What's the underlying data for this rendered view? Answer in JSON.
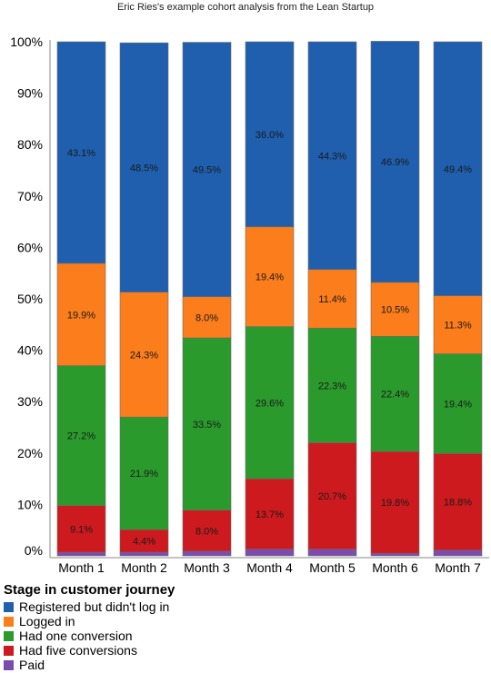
{
  "chart_data": {
    "type": "bar",
    "stacked": true,
    "title": "Eric Ries's example cohort analysis from the Lean Startup",
    "xlabel": "",
    "ylabel": "",
    "ylim": [
      0,
      100
    ],
    "y_ticks": [
      "0%",
      "10%",
      "20%",
      "30%",
      "40%",
      "50%",
      "60%",
      "70%",
      "80%",
      "90%",
      "100%"
    ],
    "grid": false,
    "legend_position": "bottom-left",
    "legend_title": "Stage in customer journey",
    "categories": [
      "Month 1",
      "Month 2",
      "Month 3",
      "Month 4",
      "Month 5",
      "Month 6",
      "Month 7"
    ],
    "series": [
      {
        "name": "Paid",
        "color": "#7b4cae",
        "values": [
          0.7,
          0.7,
          0.9,
          1.3,
          1.3,
          0.5,
          1.1
        ],
        "labels": [
          "",
          "",
          "",
          "",
          "",
          "",
          ""
        ]
      },
      {
        "name": "Had five conversions",
        "color": "#cc1a1f",
        "values": [
          9.1,
          4.4,
          8.0,
          13.7,
          20.7,
          19.8,
          18.8
        ],
        "labels": [
          "9.1%",
          "4.4%",
          "8.0%",
          "13.7%",
          "20.7%",
          "19.8%",
          "18.8%"
        ]
      },
      {
        "name": "Had one conversion",
        "color": "#2b9a2c",
        "values": [
          27.2,
          21.9,
          33.5,
          29.6,
          22.3,
          22.4,
          19.4
        ],
        "labels": [
          "27.2%",
          "21.9%",
          "33.5%",
          "29.6%",
          "22.3%",
          "22.4%",
          "19.4%"
        ]
      },
      {
        "name": "Logged in",
        "color": "#fb7d1b",
        "values": [
          19.9,
          24.3,
          8.0,
          19.4,
          11.4,
          10.5,
          11.3
        ],
        "labels": [
          "19.9%",
          "24.3%",
          "8.0%",
          "19.4%",
          "11.4%",
          "10.5%",
          "11.3%"
        ]
      },
      {
        "name": "Registered but didn't log in",
        "color": "#1f5fae",
        "values": [
          43.1,
          48.5,
          49.5,
          36.0,
          44.3,
          46.9,
          49.4
        ],
        "labels": [
          "43.1%",
          "48.5%",
          "49.5%",
          "36.0%",
          "44.3%",
          "46.9%",
          "49.4%"
        ]
      }
    ],
    "legend_order": [
      "Registered but didn't log in",
      "Logged in",
      "Had one conversion",
      "Had five conversions",
      "Paid"
    ]
  }
}
